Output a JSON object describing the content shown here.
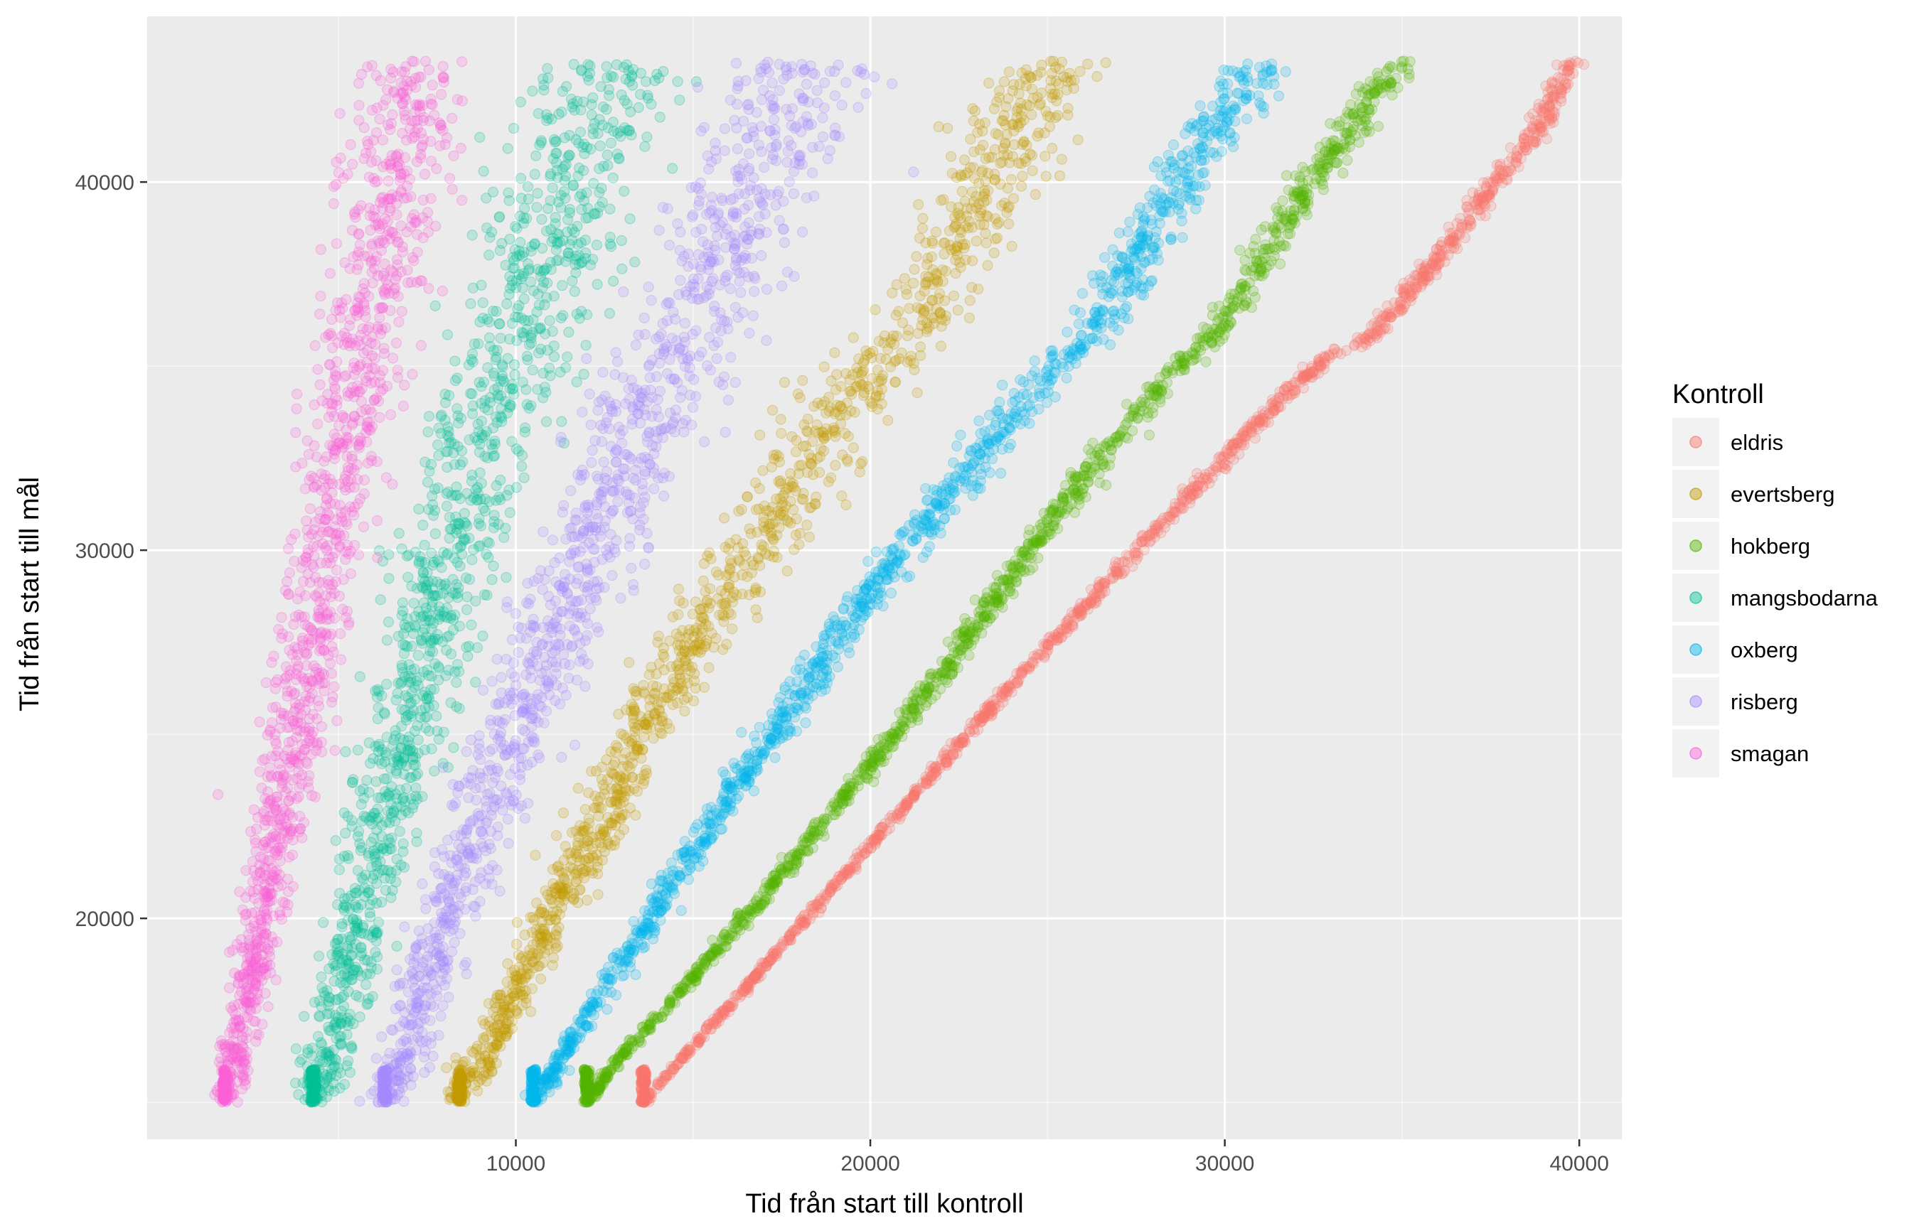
{
  "chart_data": {
    "type": "scatter",
    "title": "",
    "xlabel": "Tid från start till kontroll",
    "ylabel": "Tid från start till mål",
    "xlim": [
      -400,
      41200
    ],
    "ylim": [
      14000,
      44500
    ],
    "xticks": [
      10000,
      20000,
      30000,
      40000
    ],
    "yticks": [
      20000,
      30000,
      40000
    ],
    "x_tick_labels": [
      "10000",
      "20000",
      "30000",
      "40000"
    ],
    "y_tick_labels": [
      "20000",
      "30000",
      "40000"
    ],
    "grid": true,
    "background": "#ebebeb",
    "gridline_color": "#ffffff",
    "point_alpha": 0.2,
    "legend": {
      "title": "Kontroll",
      "position": "right",
      "key_background": "#f2f2f2"
    },
    "series": [
      {
        "name": "eldris",
        "color": "#F8766D",
        "spread_x": 150,
        "x": [
          13600,
          14500,
          16000,
          18000,
          20000,
          22000,
          24000,
          26000,
          28000,
          30000,
          32000,
          33000,
          34000,
          35000,
          36000,
          37000,
          38000,
          39000,
          39800
        ],
        "y": [
          15000,
          16000,
          17600,
          19800,
          22000,
          24200,
          26400,
          28400,
          30500,
          32500,
          34500,
          35300,
          35700,
          36800,
          37900,
          39200,
          40400,
          41700,
          43300
        ]
      },
      {
        "name": "evertsberg",
        "color": "#C49A00",
        "spread_x": 700,
        "x": [
          8400,
          9500,
          11000,
          13000,
          15000,
          17000,
          18500,
          19500,
          20500,
          21500,
          22500,
          23500,
          24500,
          25000
        ],
        "y": [
          15000,
          17000,
          20000,
          24000,
          27500,
          30500,
          32800,
          34300,
          35300,
          36300,
          38500,
          40500,
          42300,
          43300
        ]
      },
      {
        "name": "hokberg",
        "color": "#53B400",
        "spread_x": 250,
        "x": [
          12000,
          13000,
          15000,
          17000,
          19000,
          21000,
          23000,
          25000,
          27000,
          28500,
          29500,
          30000,
          31000,
          32000,
          33000,
          34000,
          35000
        ],
        "y": [
          15000,
          16300,
          18400,
          20600,
          23000,
          25400,
          28000,
          30700,
          33100,
          34800,
          35700,
          36300,
          37800,
          39400,
          40700,
          42100,
          43300
        ]
      },
      {
        "name": "mangsbodarna",
        "color": "#00C094",
        "spread_x": 900,
        "x": [
          4300,
          5000,
          6000,
          7000,
          8000,
          9000,
          10000,
          11000,
          12000,
          12900
        ],
        "y": [
          15000,
          17500,
          21500,
          25500,
          29500,
          33000,
          35500,
          38500,
          41300,
          43200
        ]
      },
      {
        "name": "oxberg",
        "color": "#00B6EB",
        "spread_x": 400,
        "x": [
          10500,
          12000,
          14000,
          16000,
          18000,
          20000,
          22000,
          24000,
          25500,
          26500,
          27500,
          28500,
          29500,
          30500,
          31000
        ],
        "y": [
          15000,
          17300,
          20300,
          23300,
          26100,
          28900,
          31200,
          33700,
          35300,
          36000,
          38000,
          39700,
          41300,
          42600,
          43300
        ]
      },
      {
        "name": "risberg",
        "color": "#A58AFF",
        "spread_x": 900,
        "x": [
          6300,
          7500,
          9000,
          10500,
          12000,
          13500,
          14500,
          15500,
          16500,
          17500,
          18500
        ],
        "y": [
          15000,
          18500,
          22500,
          26500,
          30000,
          33000,
          35200,
          37000,
          39300,
          41500,
          43300
        ]
      },
      {
        "name": "smagan",
        "color": "#FB61D7",
        "spread_x": 650,
        "x": [
          1800,
          2500,
          3200,
          4000,
          4800,
          5600,
          6400,
          7000
        ],
        "y": [
          15000,
          18000,
          22000,
          26000,
          30500,
          35000,
          39000,
          43300
        ]
      }
    ]
  }
}
